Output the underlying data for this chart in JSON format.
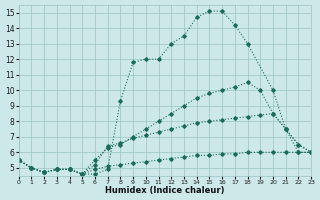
{
  "xlabel": "Humidex (Indice chaleur)",
  "bg_color": "#cce8e8",
  "grid_color": "#99c4c4",
  "line_color": "#1a6b5a",
  "xlim": [
    0,
    23
  ],
  "ylim": [
    4.5,
    15.5
  ],
  "xticks": [
    0,
    1,
    2,
    3,
    4,
    5,
    6,
    7,
    8,
    9,
    10,
    11,
    12,
    13,
    14,
    15,
    16,
    17,
    18,
    19,
    20,
    21,
    22,
    23
  ],
  "yticks": [
    5,
    6,
    7,
    8,
    9,
    10,
    11,
    12,
    13,
    14,
    15
  ],
  "lines": [
    {
      "x": [
        0,
        1,
        2,
        3,
        4,
        5,
        6,
        7,
        8,
        9,
        10,
        11,
        12,
        13,
        14,
        15,
        16,
        17,
        18,
        20,
        21,
        22,
        23
      ],
      "y": [
        5.5,
        5.0,
        4.7,
        4.9,
        4.9,
        4.6,
        4.6,
        4.9,
        9.3,
        11.8,
        12.0,
        12.0,
        13.0,
        13.5,
        14.7,
        15.1,
        15.1,
        14.2,
        13.0,
        10.0,
        7.5,
        6.0,
        6.0
      ]
    },
    {
      "x": [
        0,
        1,
        2,
        3,
        4,
        5,
        6,
        7,
        8,
        9,
        10,
        11,
        12,
        13,
        14,
        15,
        16,
        17,
        18,
        19,
        20,
        21,
        22,
        23
      ],
      "y": [
        5.5,
        5.0,
        4.7,
        4.9,
        4.9,
        4.6,
        5.5,
        6.3,
        6.5,
        7.0,
        7.5,
        8.0,
        8.5,
        9.0,
        9.5,
        9.8,
        10.0,
        10.2,
        10.5,
        10.0,
        8.5,
        7.5,
        6.5,
        6.0
      ]
    },
    {
      "x": [
        0,
        1,
        2,
        3,
        4,
        5,
        6,
        7,
        8,
        9,
        10,
        11,
        12,
        13,
        14,
        15,
        16,
        17,
        18,
        19,
        20,
        21,
        22,
        23
      ],
      "y": [
        5.5,
        5.0,
        4.7,
        4.9,
        4.9,
        4.6,
        5.2,
        6.4,
        6.6,
        6.9,
        7.1,
        7.3,
        7.5,
        7.7,
        7.9,
        8.0,
        8.1,
        8.2,
        8.3,
        8.4,
        8.5,
        7.5,
        6.5,
        6.0
      ]
    },
    {
      "x": [
        0,
        1,
        2,
        3,
        4,
        5,
        6,
        7,
        8,
        9,
        10,
        11,
        12,
        13,
        14,
        15,
        16,
        17,
        18,
        19,
        20,
        21,
        22,
        23
      ],
      "y": [
        5.5,
        5.0,
        4.7,
        4.9,
        4.9,
        4.6,
        4.9,
        5.1,
        5.2,
        5.3,
        5.4,
        5.5,
        5.6,
        5.7,
        5.8,
        5.8,
        5.9,
        5.9,
        6.0,
        6.0,
        6.0,
        6.0,
        6.0,
        6.0
      ]
    }
  ]
}
